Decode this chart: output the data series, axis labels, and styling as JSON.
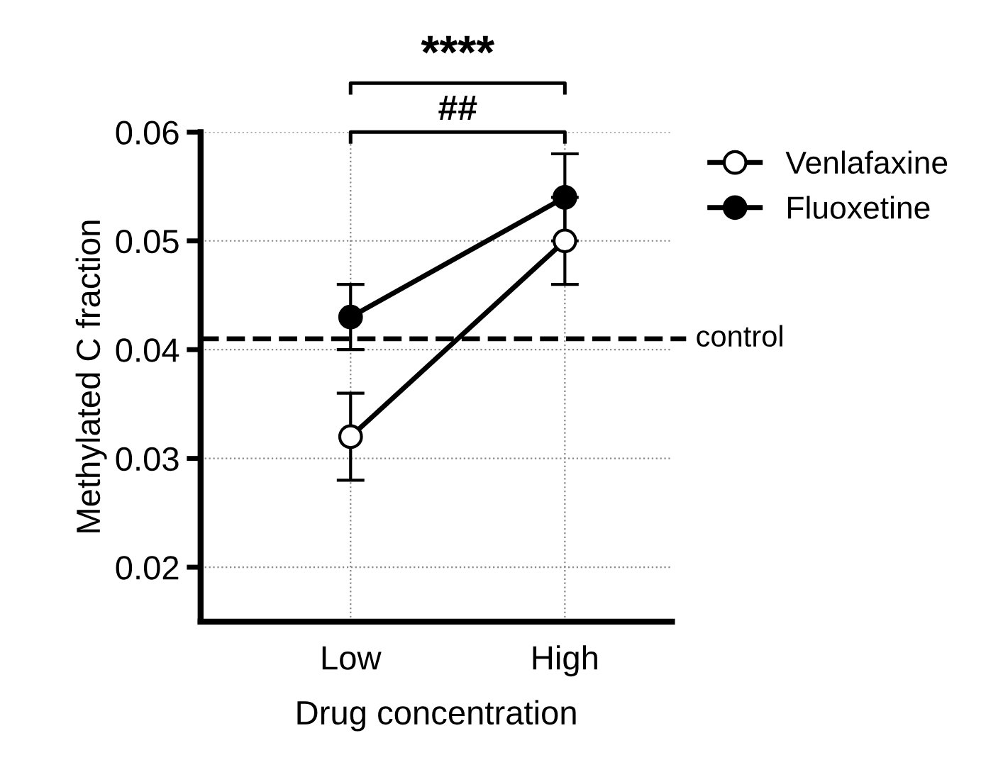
{
  "chart_data": {
    "type": "line",
    "xlabel": "Drug concentration",
    "ylabel": "Methylated C fraction",
    "categories": [
      "Low",
      "High"
    ],
    "series": [
      {
        "name": "Venlafaxine",
        "color": "#000000",
        "colors": [
          "#ffffff",
          "#ffffff"
        ],
        "values": [
          0.032,
          0.05
        ],
        "errors": [
          0.004,
          0.004
        ]
      },
      {
        "name": "Fluoxetine",
        "color": "#000000",
        "colors": [
          "#000000",
          "#000000"
        ],
        "values": [
          0.043,
          0.054
        ],
        "errors": [
          0.003,
          0.004
        ]
      }
    ],
    "ylim": [
      0.015,
      0.06
    ],
    "yticks": [
      0.02,
      0.03,
      0.04,
      0.05,
      0.06
    ],
    "ref_lines": [
      {
        "axis": "y",
        "value": 0.041,
        "label": "control",
        "color": "#000000",
        "line_style": "dashed"
      }
    ],
    "annotations": [
      "****",
      "##"
    ],
    "grid": true,
    "legend": "right",
    "marker": "circle",
    "line_style": "solid"
  }
}
